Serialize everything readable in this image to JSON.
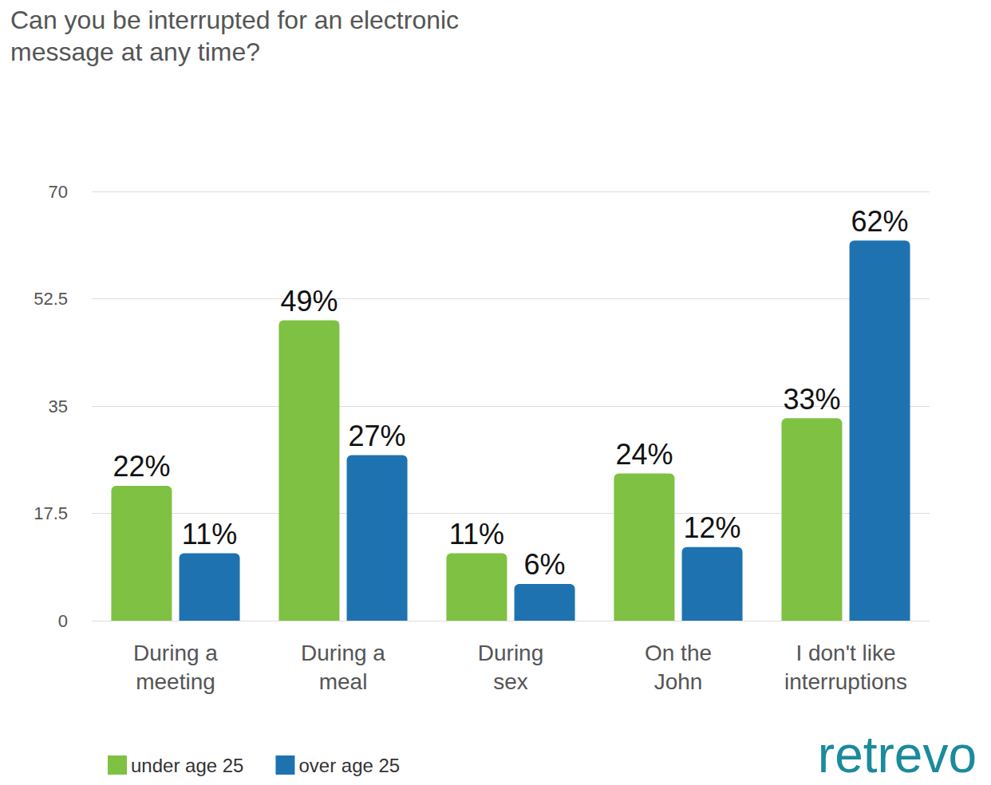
{
  "chart_data": {
    "type": "bar",
    "title": "Can you be interrupted for an electronic message at any time?",
    "categories": [
      "During a meeting",
      "During a meal",
      "During sex",
      "On the John",
      "I don't like interruptions"
    ],
    "series": [
      {
        "name": "under age 25",
        "color": "#7fc142",
        "values": [
          22,
          49,
          11,
          24,
          33
        ],
        "value_labels": [
          "22%",
          "49%",
          "11%",
          "24%",
          "33%"
        ]
      },
      {
        "name": "over age 25",
        "color": "#1f72b0",
        "values": [
          11,
          27,
          6,
          12,
          62
        ],
        "value_labels": [
          "11%",
          "27%",
          "6%",
          "12%",
          "62%"
        ]
      }
    ],
    "ylim": [
      0,
      70
    ],
    "yticks": [
      0,
      17.5,
      35,
      52.5,
      70
    ],
    "grid": true,
    "legend": "bottom",
    "data_labels": true,
    "annotations": [
      "retrevo"
    ]
  }
}
